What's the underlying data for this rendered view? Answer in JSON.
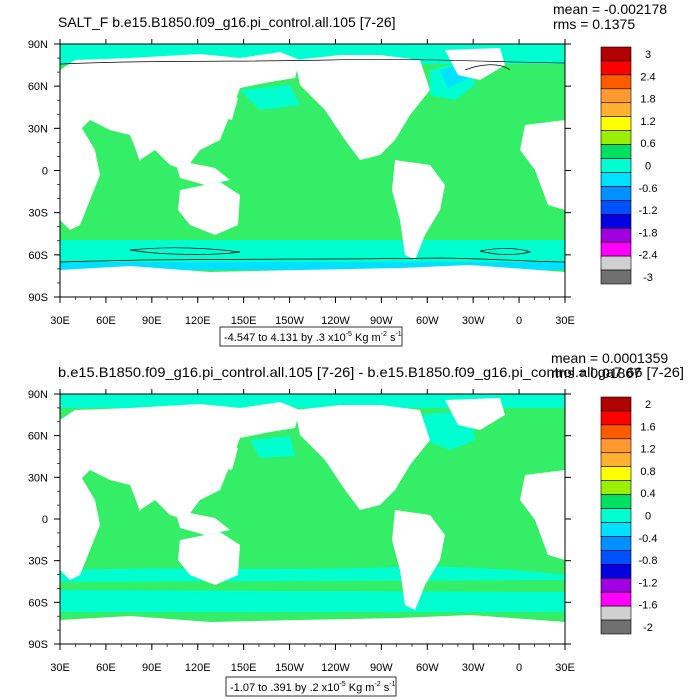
{
  "chart_data": [
    {
      "type": "heatmap",
      "title": "SALT_F b.e15.B1850.f09_g16.pi_control.all.105 [7-26]",
      "stats": {
        "mean": "mean = -0.002178",
        "rms": "rms = 0.1375"
      },
      "range_note": "-4.547 to 4.131 by .3 x10",
      "range_exp": "-5",
      "range_units": " Kg m",
      "range_units_exp": "-2",
      "range_s": " s",
      "range_s_exp": "-1",
      "x_ticks": [
        "30E",
        "60E",
        "90E",
        "120E",
        "150E",
        "150W",
        "120W",
        "90W",
        "60W",
        "30W",
        "0",
        "30E"
      ],
      "y_ticks": [
        "90N",
        "60N",
        "30N",
        "0",
        "30S",
        "60S",
        "90S"
      ],
      "colorbar_labels": [
        "3",
        "2.4",
        "1.8",
        "1.2",
        "0.6",
        "0",
        "-0.6",
        "-1.2",
        "-1.8",
        "-2.4",
        "-3"
      ],
      "colorbar_colors": [
        "#b00000",
        "#ff0000",
        "#ff5a00",
        "#ff9a30",
        "#ffb030",
        "#ffff00",
        "#9af000",
        "#00e060",
        "#00ffd0",
        "#00e0ff",
        "#0090ff",
        "#0050ff",
        "#0000e0",
        "#a000e0",
        "#ff00ff",
        "#d0d0d0",
        "#707070"
      ],
      "ocean_color": "#33ee66"
    },
    {
      "type": "heatmap",
      "title": "b.e15.B1850.f09_g16.pi_control.all.105 [7-26] - b.e15.B1850.f09_g16.pi_control.all.ga7.66 [7-26]",
      "stats": {
        "mean": "mean = 0.0001359",
        "rms": "rms = 0.01867"
      },
      "range_note": "-1.07 to .391 by .2 x10",
      "range_exp": "-5",
      "range_units": " Kg m",
      "range_units_exp": "-2",
      "range_s": " s",
      "range_s_exp": "-1",
      "x_ticks": [
        "30E",
        "60E",
        "90E",
        "120E",
        "150E",
        "150W",
        "120W",
        "90W",
        "60W",
        "30W",
        "0",
        "30E"
      ],
      "y_ticks": [
        "90N",
        "60N",
        "30N",
        "0",
        "30S",
        "60S",
        "90S"
      ],
      "colorbar_labels": [
        "2",
        "1.6",
        "1.2",
        "0.8",
        "0.4",
        "0",
        "-0.4",
        "-0.8",
        "-1.2",
        "-1.6",
        "-2"
      ],
      "colorbar_colors": [
        "#b00000",
        "#ff0000",
        "#ff5a00",
        "#ff9a30",
        "#ffb030",
        "#ffff00",
        "#9af000",
        "#00e060",
        "#00ffd0",
        "#00e0ff",
        "#0090ff",
        "#0050ff",
        "#0000e0",
        "#a000e0",
        "#ff00ff",
        "#d0d0d0",
        "#707070"
      ],
      "ocean_color": "#33ee66"
    }
  ]
}
